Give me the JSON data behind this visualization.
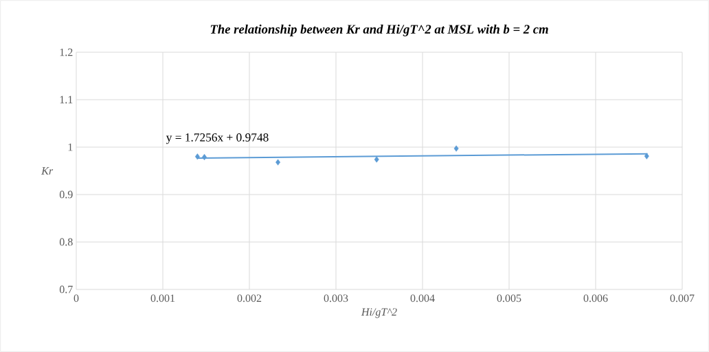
{
  "chart_data": {
    "type": "scatter",
    "title": "The relationship between Kr and Hi/gT^2 at MSL with b = 2 cm",
    "xlabel": "Hi/gT^2",
    "ylabel": "Kr",
    "x": [
      0.0014,
      0.00148,
      0.00233,
      0.00347,
      0.00439,
      0.00659
    ],
    "series": [
      {
        "color": "#5b9bd5",
        "marker": "diamond",
        "values": [
          0.98,
          0.979,
          0.968,
          0.974,
          0.997,
          0.981
        ]
      },
      {
        "type": "line",
        "color": "#5b9bd5",
        "marker": "none",
        "x": [
          0.0014,
          0.0066
        ],
        "values": [
          0.977,
          0.986
        ]
      }
    ],
    "annotations": [
      "y = 1.7256x + 0.9748"
    ],
    "xlim": [
      0,
      0.007
    ],
    "ylim": [
      0.7,
      1.2
    ],
    "xticks": [
      0,
      0.001,
      0.002,
      0.003,
      0.004,
      0.005,
      0.006,
      0.007
    ],
    "yticks": [
      0.7,
      0.8,
      0.9,
      1,
      1.1,
      1.2
    ],
    "grid": true
  }
}
